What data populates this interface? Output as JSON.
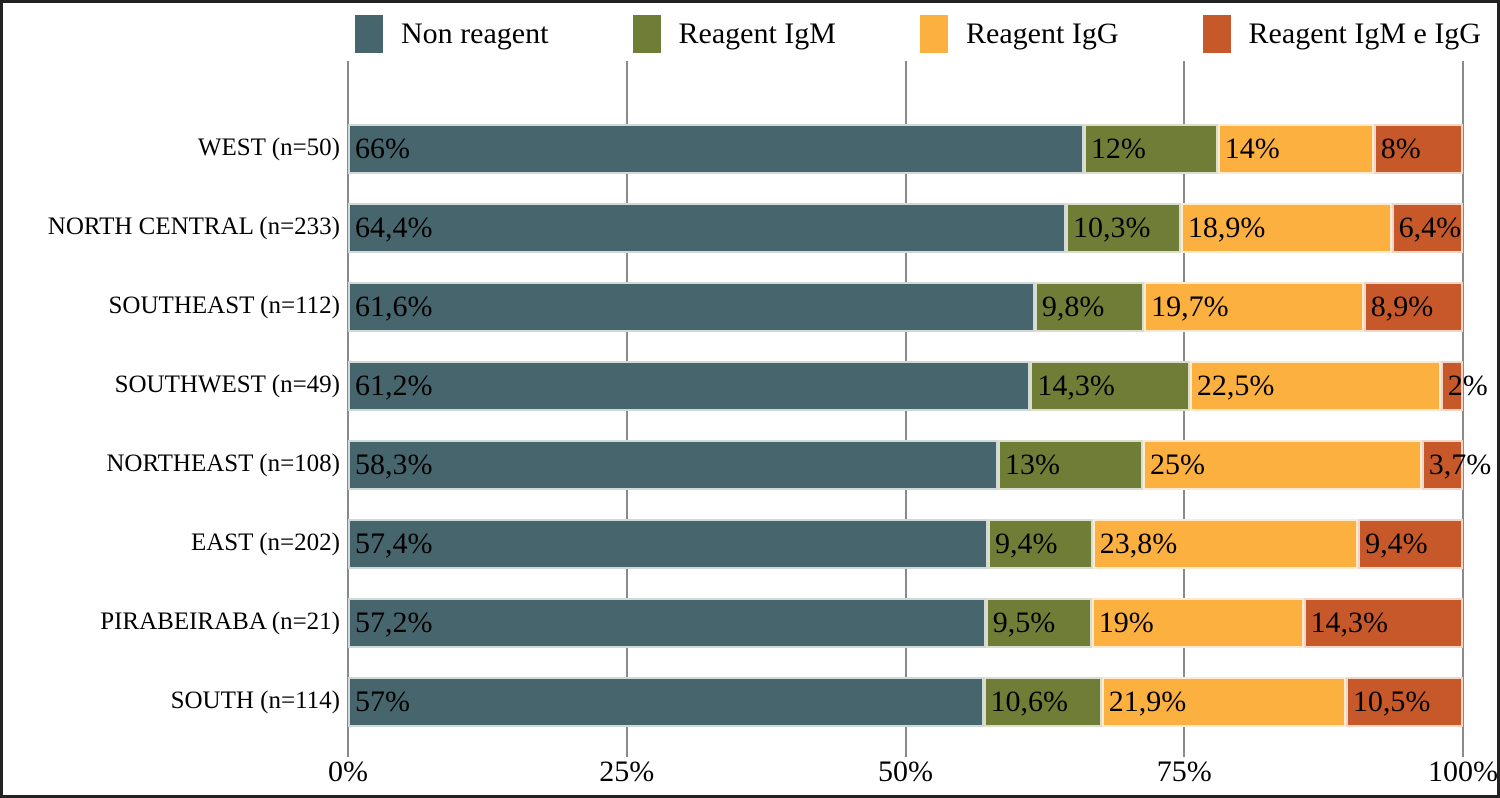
{
  "legend": [
    {
      "name": "non-reagent",
      "label": "Non reagent",
      "color": "#47656c"
    },
    {
      "name": "reagent-igm",
      "label": "Reagent IgM",
      "color": "#6f7d36"
    },
    {
      "name": "reagent-igg",
      "label": "Reagent IgG",
      "color": "#fbb040"
    },
    {
      "name": "reagent-igm-e-igg",
      "label": "Reagent IgM e IgG",
      "color": "#c65829"
    }
  ],
  "chart_data": {
    "type": "bar",
    "orientation": "horizontal",
    "stacked": true,
    "grid": true,
    "legend_position": "top",
    "xlim": [
      0,
      100
    ],
    "x_ticks": [
      "0%",
      "25%",
      "50%",
      "75%",
      "100%"
    ],
    "categories": [
      "WEST (n=50)",
      "NORTH CENTRAL (n=233)",
      "SOUTHEAST (n=112)",
      "SOUTHWEST (n=49)",
      "NORTHEAST (n=108)",
      "EAST (n=202)",
      "PIRABEIRABA (n=21)",
      "SOUTH (n=114)"
    ],
    "series": [
      {
        "name": "Non reagent",
        "color": "#47656c",
        "values": [
          66,
          64.4,
          61.6,
          61.2,
          58.3,
          57.4,
          57.2,
          57
        ],
        "labels": [
          "66%",
          "64,4%",
          "61,6%",
          "61,2%",
          "58,3%",
          "57,4%",
          "57,2%",
          "57%"
        ]
      },
      {
        "name": "Reagent IgM",
        "color": "#6f7d36",
        "values": [
          12,
          10.3,
          9.8,
          14.3,
          13,
          9.4,
          9.5,
          10.6
        ],
        "labels": [
          "12%",
          "10,3%",
          "9,8%",
          "14,3%",
          "13%",
          "9,4%",
          "9,5%",
          "10,6%"
        ]
      },
      {
        "name": "Reagent IgG",
        "color": "#fbb040",
        "values": [
          14,
          18.9,
          19.7,
          22.5,
          25,
          23.8,
          19,
          21.9
        ],
        "labels": [
          "14%",
          "18,9%",
          "19,7%",
          "22,5%",
          "25%",
          "23,8%",
          "19%",
          "21,9%"
        ]
      },
      {
        "name": "Reagent IgM e IgG",
        "color": "#c65829",
        "values": [
          8,
          6.4,
          8.9,
          2,
          3.7,
          9.4,
          14.3,
          10.5
        ],
        "labels": [
          "8%",
          "6,4%",
          "8,9%",
          "2%",
          "3,7%",
          "9,4%",
          "14,3%",
          "10,5%"
        ]
      }
    ]
  }
}
